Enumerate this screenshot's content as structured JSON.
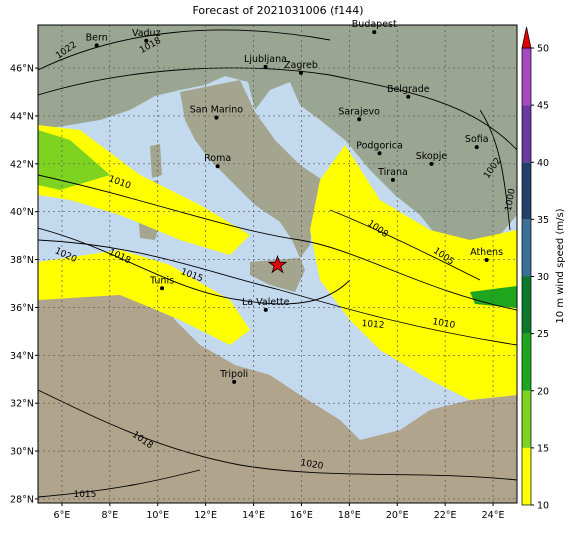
{
  "title": "Forecast of 2021031006 (f144)",
  "map": {
    "lon_lim": [
      5,
      25
    ],
    "lat_lim": [
      27.83,
      47.8
    ],
    "grid": true,
    "lon_ticks": [
      {
        "value": 6,
        "label": "6°E"
      },
      {
        "value": 8,
        "label": "8°E"
      },
      {
        "value": 10,
        "label": "10°E"
      },
      {
        "value": 12,
        "label": "12°E"
      },
      {
        "value": 14,
        "label": "14°E"
      },
      {
        "value": 16,
        "label": "16°E"
      },
      {
        "value": 18,
        "label": "18°E"
      },
      {
        "value": 20,
        "label": "20°E"
      },
      {
        "value": 22,
        "label": "22°E"
      },
      {
        "value": 24,
        "label": "24°E"
      }
    ],
    "lat_ticks": [
      {
        "value": 28,
        "label": "28°N"
      },
      {
        "value": 30,
        "label": "30°N"
      },
      {
        "value": 32,
        "label": "32°N"
      },
      {
        "value": 34,
        "label": "34°N"
      },
      {
        "value": 36,
        "label": "36°N"
      },
      {
        "value": 38,
        "label": "38°N"
      },
      {
        "value": 40,
        "label": "40°N"
      },
      {
        "value": 42,
        "label": "42°N"
      },
      {
        "value": 44,
        "label": "44°N"
      },
      {
        "value": 46,
        "label": "46°N"
      }
    ]
  },
  "cities": [
    {
      "name": "Bern",
      "lon": 7.45,
      "lat": 46.95
    },
    {
      "name": "Vaduz",
      "lon": 9.52,
      "lat": 47.14
    },
    {
      "name": "Budapest",
      "lon": 19.04,
      "lat": 47.5
    },
    {
      "name": "Ljubljana",
      "lon": 14.5,
      "lat": 46.05
    },
    {
      "name": "Zagreb",
      "lon": 15.98,
      "lat": 45.8
    },
    {
      "name": "San Marino",
      "lon": 12.45,
      "lat": 43.93
    },
    {
      "name": "Belgrade",
      "lon": 20.46,
      "lat": 44.8
    },
    {
      "name": "Sarajevo",
      "lon": 18.41,
      "lat": 43.86
    },
    {
      "name": "Podgorica",
      "lon": 19.26,
      "lat": 42.44
    },
    {
      "name": "Sofia",
      "lon": 23.32,
      "lat": 42.7
    },
    {
      "name": "Skopje",
      "lon": 21.43,
      "lat": 42.0
    },
    {
      "name": "Tirana",
      "lon": 19.82,
      "lat": 41.33
    },
    {
      "name": "Roma",
      "lon": 12.5,
      "lat": 41.9
    },
    {
      "name": "Tunis",
      "lon": 10.18,
      "lat": 36.8
    },
    {
      "name": "La Valette",
      "lon": 14.51,
      "lat": 35.9
    },
    {
      "name": "Athens",
      "lon": 23.73,
      "lat": 37.98
    },
    {
      "name": "Tripoli",
      "lon": 13.19,
      "lat": 32.89
    }
  ],
  "isobar_labels": [
    {
      "text": "1022",
      "lon": 6.17,
      "lat": 46.76
    },
    {
      "text": "1018",
      "lon": 9.68,
      "lat": 46.96
    },
    {
      "text": "1010",
      "lon": 8.42,
      "lat": 41.24
    },
    {
      "text": "1020",
      "lon": 6.17,
      "lat": 38.2
    },
    {
      "text": "1018",
      "lon": 8.42,
      "lat": 38.15
    },
    {
      "text": "1015",
      "lon": 11.43,
      "lat": 37.36
    },
    {
      "text": "1012",
      "lon": 18.99,
      "lat": 35.31
    },
    {
      "text": "1010",
      "lon": 21.95,
      "lat": 35.35
    },
    {
      "text": "1008",
      "lon": 19.2,
      "lat": 39.3
    },
    {
      "text": "1005",
      "lon": 21.95,
      "lat": 38.15
    },
    {
      "text": "1002",
      "lon": 23.96,
      "lat": 41.83
    },
    {
      "text": "1000",
      "lon": 24.7,
      "lat": 40.5
    },
    {
      "text": "1018",
      "lon": 9.38,
      "lat": 30.47
    },
    {
      "text": "1020",
      "lon": 16.44,
      "lat": 29.46
    },
    {
      "text": "1015",
      "lon": 6.96,
      "lat": 28.21
    }
  ],
  "marker": {
    "lon": 15.0,
    "lat": 37.77,
    "color": "#e8000b"
  },
  "colorbar": {
    "label": "10 m wind speed (m/s)",
    "lim": [
      10,
      50
    ],
    "ticks": [
      10,
      15,
      20,
      25,
      30,
      35,
      40,
      45,
      50
    ],
    "bounds": [
      10,
      15,
      20,
      25,
      30,
      35,
      40,
      45,
      50
    ],
    "colors": [
      "#ffff00",
      "#7ed321",
      "#1fa61f",
      "#0a7a2a",
      "#3a6f98",
      "#21406a",
      "#6a3aa0",
      "#a848c0"
    ],
    "extend_color": "#e00000"
  }
}
